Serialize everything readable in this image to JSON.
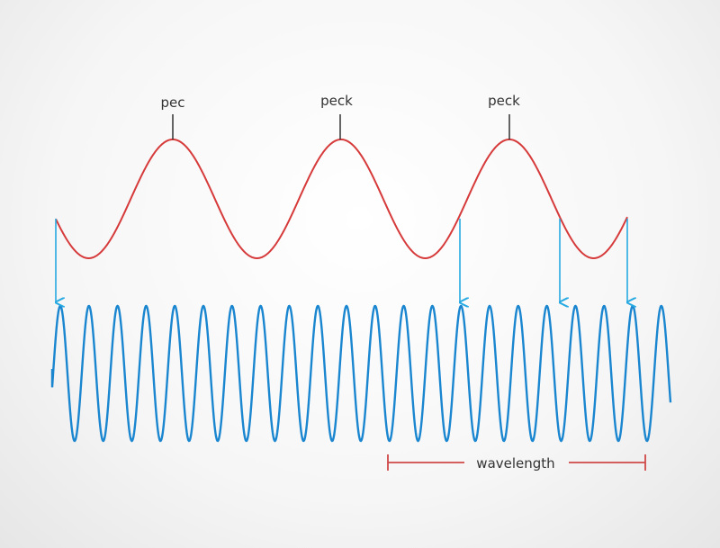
{
  "labels": {
    "peaks": [
      "pec",
      "peck",
      "peck"
    ],
    "wavelength": "wavelength"
  },
  "colors": {
    "red_wave": "#d63a3a",
    "blue_wave": "#1a86d0",
    "arrow": "#27a9e1",
    "marker": "#333333",
    "wavelength_bar": "#d04848"
  }
}
